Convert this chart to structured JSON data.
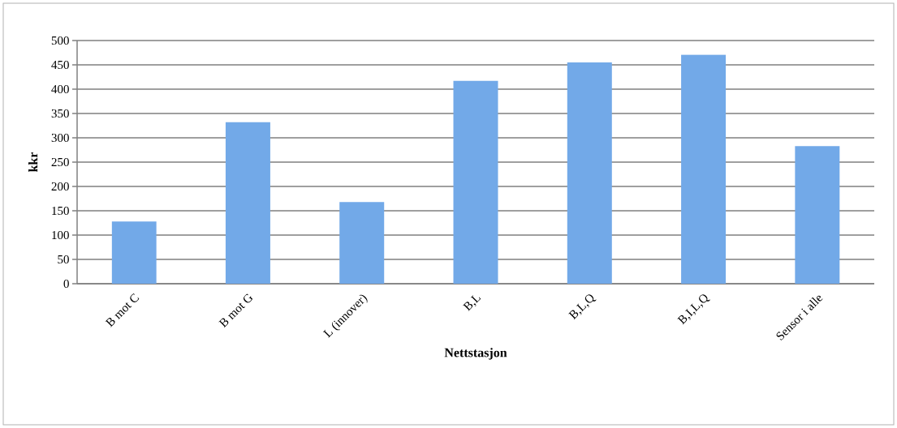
{
  "chart_data": {
    "type": "bar",
    "xlabel": "Nettstasjon",
    "ylabel": "kkr",
    "categories": [
      "B mot C",
      "B mot G",
      "L (innover)",
      "B,L",
      "B,L,Q",
      "B,I,L,Q",
      "Sensor i alle"
    ],
    "values": [
      128,
      332,
      168,
      417,
      455,
      471,
      283
    ],
    "color": "#72a9e8",
    "ylim": [
      0,
      500
    ],
    "yticks": [
      0,
      50,
      100,
      150,
      200,
      250,
      300,
      350,
      400,
      450,
      500
    ],
    "grid": "y"
  }
}
